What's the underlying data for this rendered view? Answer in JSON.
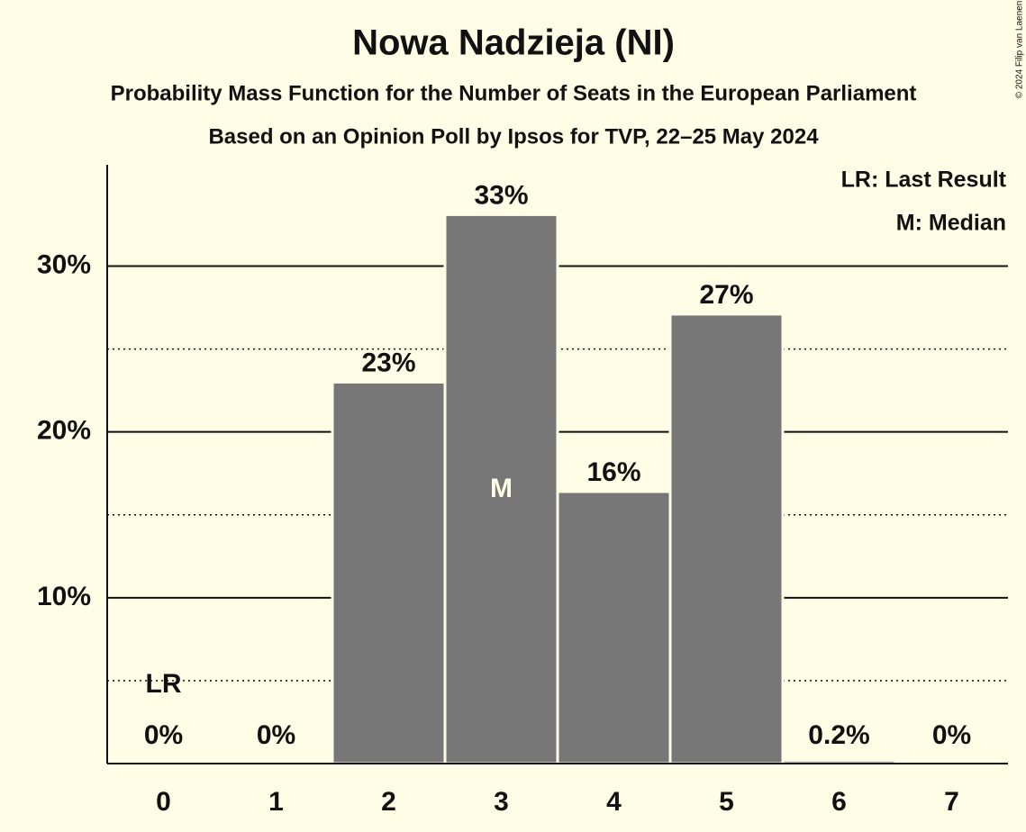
{
  "chart_data": {
    "type": "bar",
    "title": "Nowa Nadzieja (NI)",
    "subtitle": "Probability Mass Function for the Number of Seats in the European Parliament",
    "subtitle2": "Based on an Opinion Poll by Ipsos for TVP, 22–25 May 2024",
    "copyright": "© 2024 Filip van Laenen",
    "categories": [
      "0",
      "1",
      "2",
      "3",
      "4",
      "5",
      "6",
      "7"
    ],
    "values": [
      0,
      0,
      23,
      33.1,
      16.4,
      27.1,
      0.2,
      0
    ],
    "value_labels": [
      "0%",
      "0%",
      "23%",
      "33%",
      "16%",
      "27%",
      "0.2%",
      "0%"
    ],
    "color": "#777777",
    "ylim": [
      0,
      36
    ],
    "yticks": [
      {
        "value": 10,
        "label": "10%"
      },
      {
        "value": 20,
        "label": "20%"
      },
      {
        "value": 30,
        "label": "30%"
      }
    ],
    "minor_yticks": [
      5,
      15,
      25
    ],
    "last_result": {
      "label": "LR",
      "seats": "0"
    },
    "median": {
      "label": "M",
      "seats": "3"
    },
    "legend": [
      "LR: Last Result",
      "M: Median"
    ],
    "grid": true
  }
}
